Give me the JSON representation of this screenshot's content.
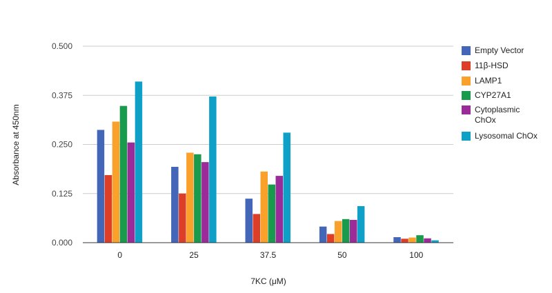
{
  "chart_data": {
    "type": "bar",
    "title": "",
    "xlabel": "7KC (μM)",
    "ylabel": "Absorbance at 450nm",
    "ylim": [
      0,
      0.5
    ],
    "yticks": [
      "0.000",
      "0.125",
      "0.250",
      "0.375",
      "0.500"
    ],
    "ytick_values": [
      0,
      0.125,
      0.25,
      0.375,
      0.5
    ],
    "categories": [
      "0",
      "25",
      "37.5",
      "50",
      "100"
    ],
    "grid": true,
    "legend_position": "right",
    "series": [
      {
        "name": "Empty Vector",
        "color": "#4466b8",
        "values": [
          0.287,
          0.193,
          0.112,
          0.041,
          0.014
        ]
      },
      {
        "name": "11β-HSD",
        "color": "#dd3e28",
        "values": [
          0.172,
          0.125,
          0.073,
          0.022,
          0.01
        ]
      },
      {
        "name": "LAMP1",
        "color": "#f9a12b",
        "values": [
          0.308,
          0.229,
          0.181,
          0.055,
          0.013
        ]
      },
      {
        "name": "CYP27A1",
        "color": "#1a9a4c",
        "values": [
          0.348,
          0.225,
          0.148,
          0.06,
          0.019
        ]
      },
      {
        "name": "Cytoplasmic ChOx",
        "color": "#9a2b98",
        "values": [
          0.255,
          0.205,
          0.17,
          0.058,
          0.011
        ]
      },
      {
        "name": "Lysosomal ChOx",
        "color": "#0fa0c7",
        "values": [
          0.41,
          0.372,
          0.28,
          0.093,
          0.006
        ]
      }
    ]
  }
}
